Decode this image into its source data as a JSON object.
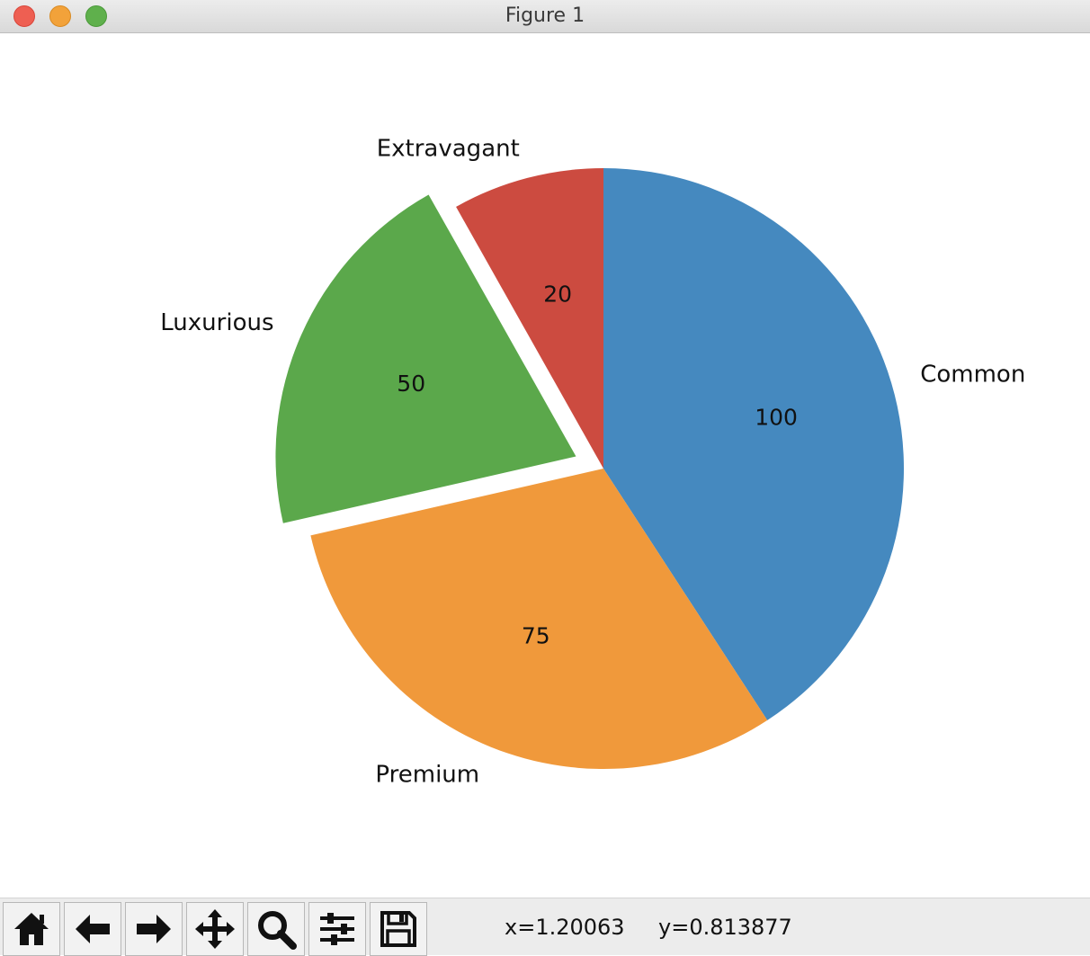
{
  "window": {
    "title": "Figure 1"
  },
  "toolbar": {
    "buttons": [
      {
        "name": "home-icon"
      },
      {
        "name": "back-arrow-icon"
      },
      {
        "name": "forward-arrow-icon"
      },
      {
        "name": "pan-move-icon"
      },
      {
        "name": "zoom-magnifier-icon"
      },
      {
        "name": "configure-subplots-icon"
      },
      {
        "name": "save-floppy-icon"
      }
    ],
    "x_readout": "x=1.20063",
    "y_readout": "y=0.813877"
  },
  "chart_data": {
    "type": "pie",
    "categories": [
      "Common",
      "Premium",
      "Luxurious",
      "Extravagant"
    ],
    "values": [
      100,
      75,
      50,
      20
    ],
    "value_labels": [
      "100",
      "75",
      "50",
      "20"
    ],
    "colors": [
      "#4589bf",
      "#f0993b",
      "#5ba84b",
      "#cc4b40"
    ],
    "explode": [
      0,
      0,
      0.1,
      0
    ],
    "start_angle_deg": 90,
    "direction": "clockwise",
    "title": ""
  }
}
